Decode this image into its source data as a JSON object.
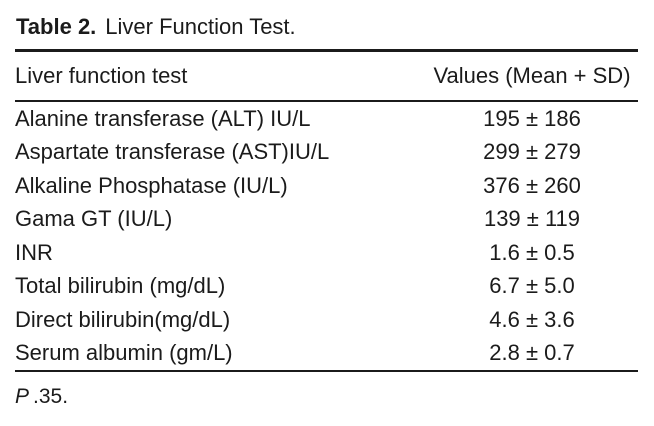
{
  "table": {
    "label": "Table 2.",
    "title": "Liver Function Test.",
    "columns": [
      "Liver function test",
      "Values (Mean + SD)"
    ],
    "rows": [
      {
        "test": "Alanine transferase (ALT) IU/L",
        "value": "195 ± 186"
      },
      {
        "test": "Aspartate transferase (AST)IU/L",
        "value": "299 ± 279"
      },
      {
        "test": "Alkaline Phosphatase (IU/L)",
        "value": "376 ± 260"
      },
      {
        "test": "Gama GT (IU/L)",
        "value": "139 ± 119"
      },
      {
        "test": "INR",
        "value": "1.6 ± 0.5"
      },
      {
        "test": "Total bilirubin (mg/dL)",
        "value": "6.7 ± 5.0"
      },
      {
        "test": "Direct bilirubin(mg/dL)",
        "value": "4.6 ± 3.6"
      },
      {
        "test": "Serum albumin (gm/L)",
        "value": "2.8 ± 0.7"
      }
    ],
    "footnote": {
      "p_symbol": "P",
      "text": ".35."
    },
    "colors": {
      "text": "#1b1b1b",
      "rule": "#1b1b1b",
      "background": "#ffffff"
    }
  }
}
